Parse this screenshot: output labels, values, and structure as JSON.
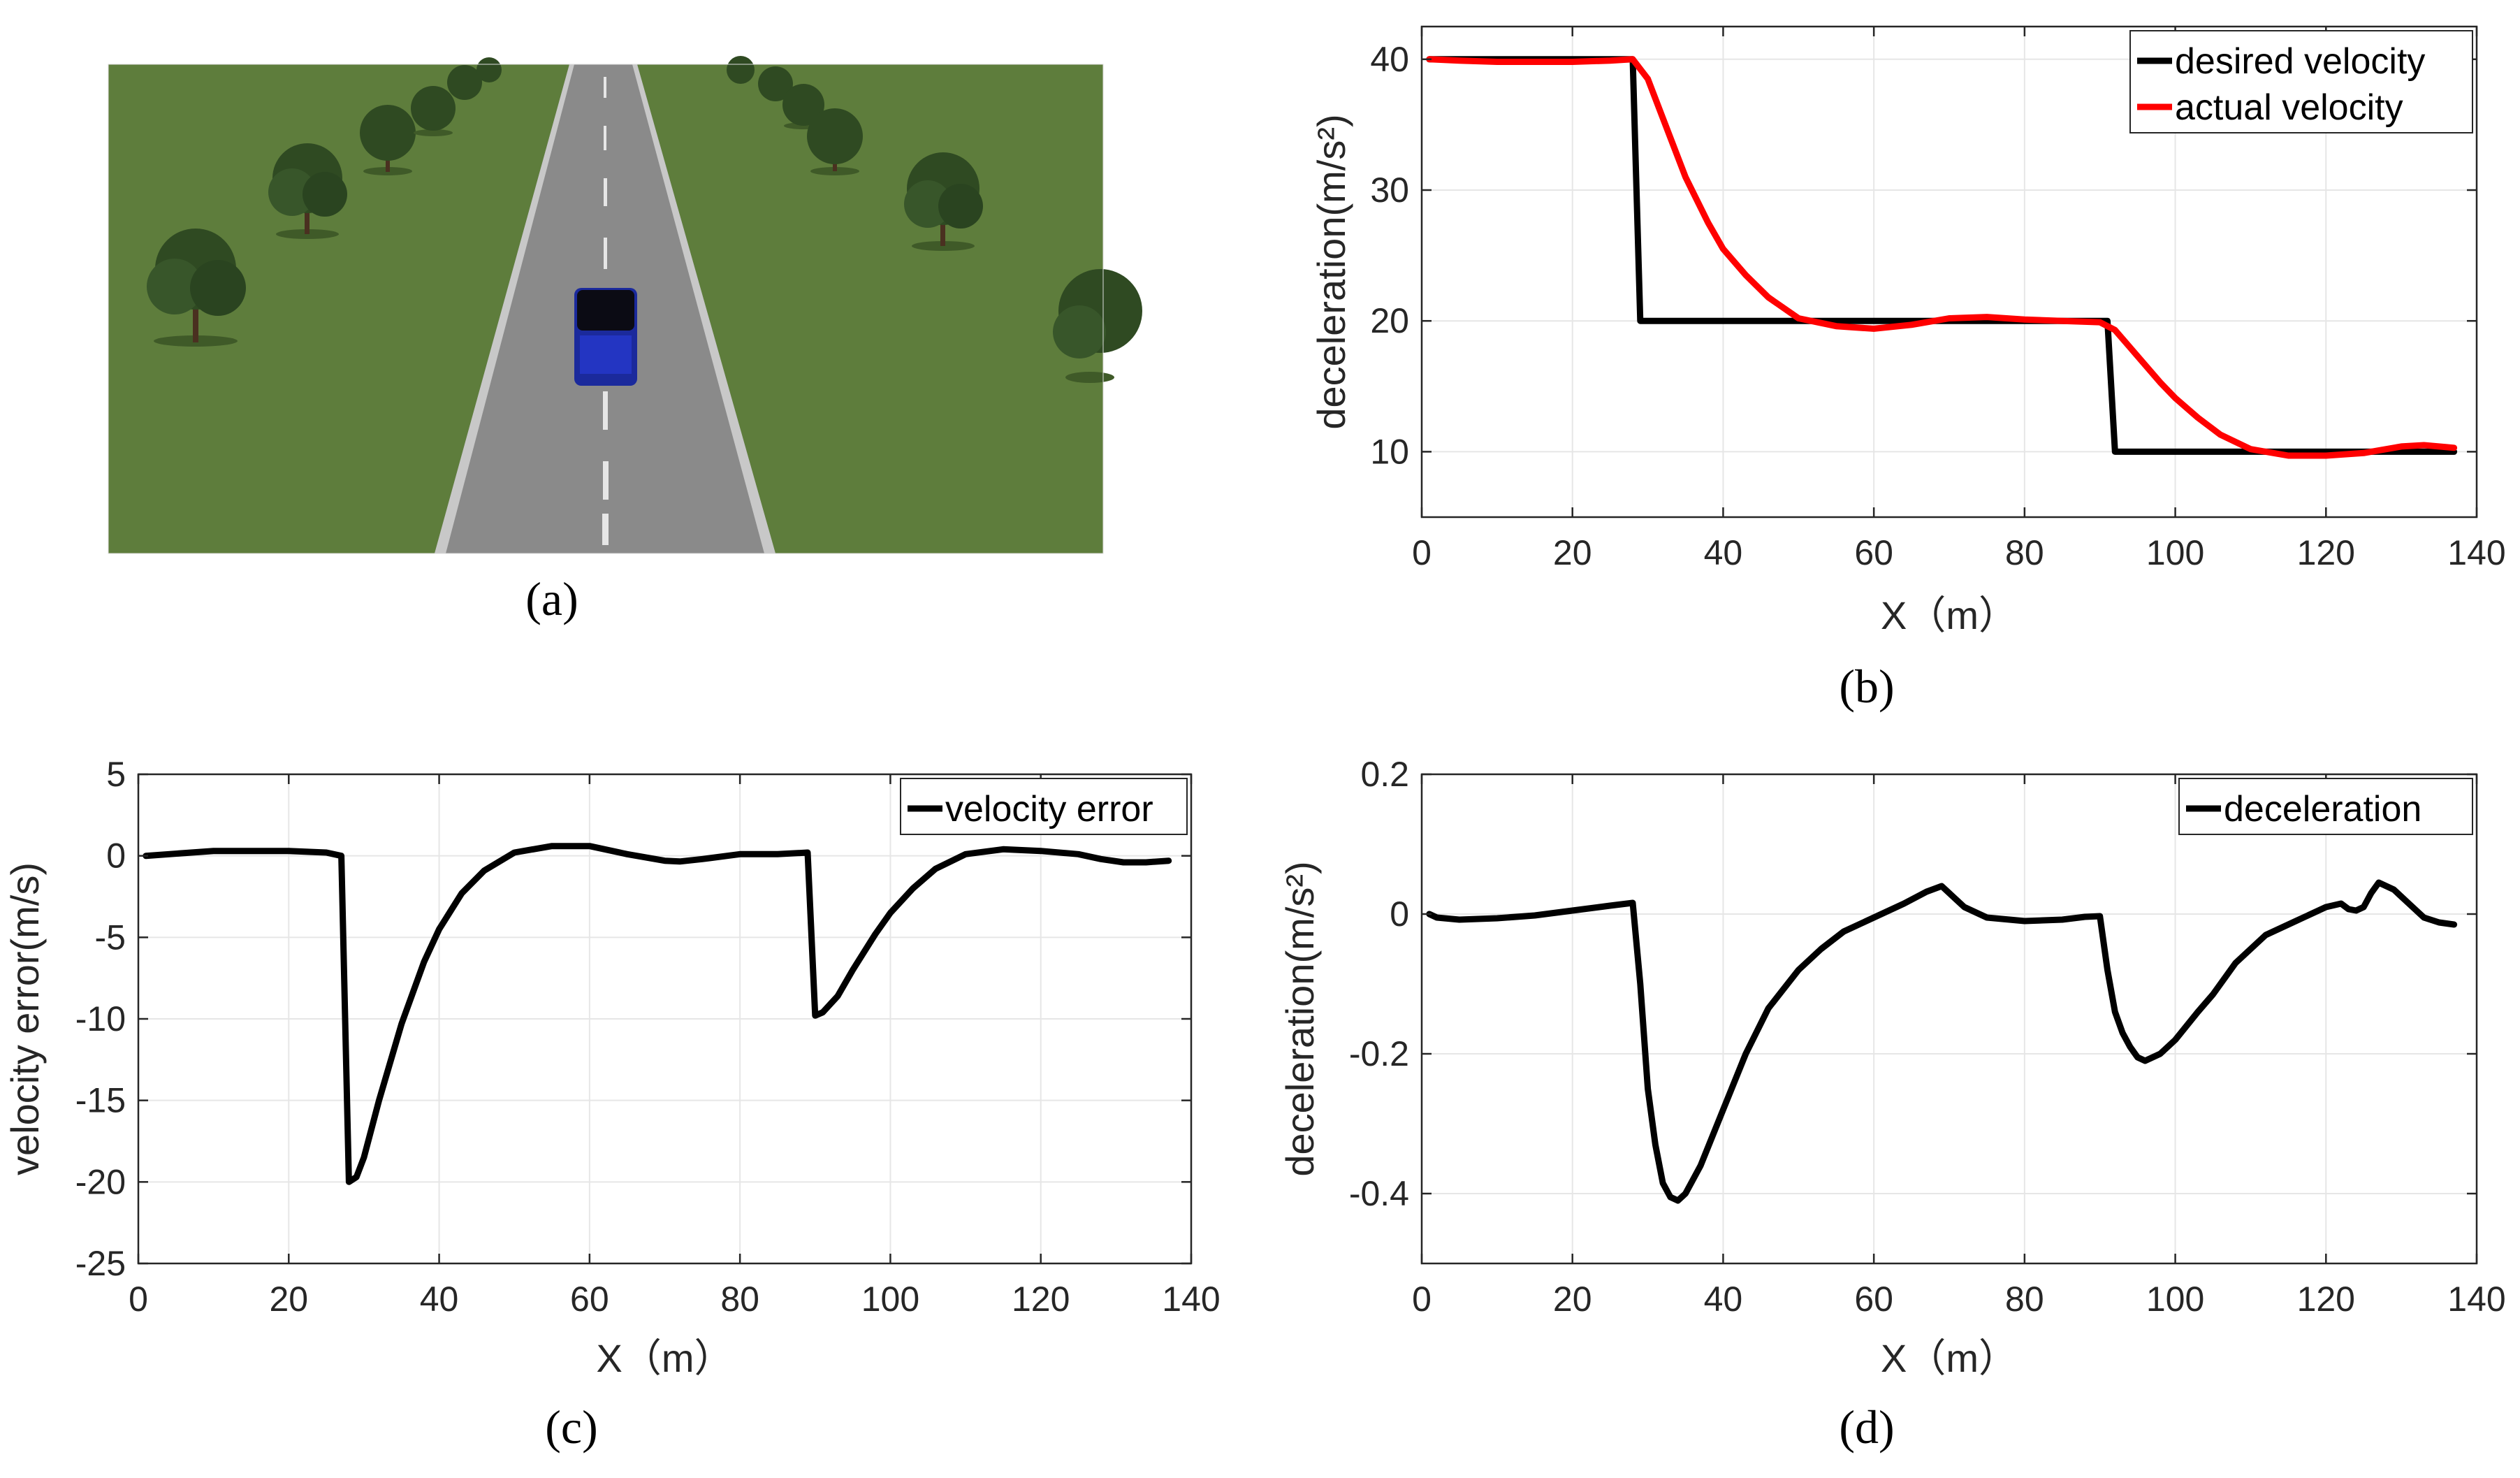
{
  "panels": {
    "a": {
      "label": "(a)"
    },
    "b": {
      "label": "(b)"
    },
    "c": {
      "label": "(c)"
    },
    "d": {
      "label": "(d)"
    }
  },
  "scene": {
    "colors": {
      "grass": "#5e7d3c",
      "road": "#8a8a8a",
      "lane_mark": "#e6e6e6",
      "vehicle": "#1b2a9c",
      "tree": "#2f4a22"
    }
  },
  "chart_data": [
    {
      "id": "b",
      "type": "line",
      "xlabel": "X（m）",
      "ylabel": "deceleration(m/s²)",
      "xlim": [
        0,
        140
      ],
      "ylim": [
        5,
        42.5
      ],
      "xticks": [
        0,
        20,
        40,
        60,
        80,
        100,
        120,
        140
      ],
      "yticks": [
        10,
        20,
        30,
        40
      ],
      "grid": true,
      "legend_position": "top-right",
      "series": [
        {
          "name": "desired velocity",
          "color": "#000000",
          "x": [
            1,
            28,
            29,
            91,
            92,
            137
          ],
          "y": [
            40,
            40,
            20,
            20,
            10,
            10
          ]
        },
        {
          "name": "actual velocity",
          "color": "#ff0000",
          "x": [
            1,
            5,
            10,
            15,
            20,
            25,
            28,
            30,
            32,
            35,
            38,
            40,
            43,
            46,
            50,
            55,
            60,
            65,
            70,
            75,
            80,
            85,
            90,
            92,
            95,
            98,
            100,
            103,
            106,
            110,
            115,
            120,
            125,
            130,
            133,
            137
          ],
          "y": [
            40,
            39.9,
            39.8,
            39.8,
            39.8,
            39.9,
            40,
            38.5,
            35.5,
            31,
            27.5,
            25.5,
            23.5,
            21.8,
            20.2,
            19.6,
            19.4,
            19.7,
            20.2,
            20.3,
            20.1,
            20,
            19.9,
            19.3,
            17.3,
            15.3,
            14.1,
            12.6,
            11.3,
            10.2,
            9.7,
            9.7,
            9.9,
            10.4,
            10.5,
            10.3
          ]
        }
      ]
    },
    {
      "id": "c",
      "type": "line",
      "xlabel": "X（m）",
      "ylabel": "velocity error(m/s)",
      "xlim": [
        0,
        140
      ],
      "ylim": [
        -25,
        5
      ],
      "xticks": [
        0,
        20,
        40,
        60,
        80,
        100,
        120,
        140
      ],
      "yticks": [
        -25,
        -20,
        -15,
        -10,
        -5,
        0,
        5
      ],
      "grid": true,
      "legend_position": "top-right",
      "series": [
        {
          "name": "velocity error",
          "color": "#000000",
          "x": [
            1,
            10,
            20,
            25,
            27,
            28,
            29,
            30,
            32,
            35,
            38,
            40,
            43,
            46,
            50,
            55,
            60,
            65,
            70,
            72,
            75,
            80,
            85,
            89,
            90,
            91,
            93,
            95,
            98,
            100,
            103,
            106,
            110,
            115,
            120,
            125,
            128,
            131,
            134,
            137
          ],
          "y": [
            0,
            0.3,
            0.3,
            0.2,
            0,
            -20,
            -19.7,
            -18.5,
            -15,
            -10.3,
            -6.5,
            -4.5,
            -2.3,
            -0.9,
            0.2,
            0.6,
            0.6,
            0.1,
            -0.3,
            -0.35,
            -0.2,
            0.1,
            0.1,
            0.2,
            -9.8,
            -9.6,
            -8.6,
            -7,
            -4.8,
            -3.5,
            -2,
            -0.8,
            0.1,
            0.4,
            0.3,
            0.1,
            -0.2,
            -0.4,
            -0.4,
            -0.3
          ]
        }
      ]
    },
    {
      "id": "d",
      "type": "line",
      "xlabel": "X（m）",
      "ylabel": "deceleration(m/s²)",
      "xlim": [
        0,
        140
      ],
      "ylim": [
        -0.5,
        0.2
      ],
      "xticks": [
        0,
        20,
        40,
        60,
        80,
        100,
        120,
        140
      ],
      "yticks": [
        -0.4,
        -0.2,
        0,
        0.2
      ],
      "grid": true,
      "legend_position": "top-right",
      "series": [
        {
          "name": "deceleration",
          "color": "#000000",
          "x": [
            1,
            2,
            5,
            10,
            15,
            20,
            25,
            28,
            29,
            30,
            31,
            32,
            33,
            34,
            35,
            37,
            40,
            43,
            46,
            50,
            53,
            56,
            60,
            64,
            67,
            69,
            72,
            75,
            80,
            85,
            88,
            90,
            91,
            92,
            93,
            94,
            95,
            96,
            98,
            100,
            103,
            105,
            108,
            112,
            116,
            120,
            122,
            123,
            124,
            125,
            126,
            127,
            129,
            131,
            133,
            135,
            137
          ],
          "y": [
            0,
            -0.005,
            -0.008,
            -0.006,
            -0.002,
            0.005,
            0.012,
            0.016,
            -0.1,
            -0.25,
            -0.33,
            -0.385,
            -0.405,
            -0.41,
            -0.4,
            -0.36,
            -0.28,
            -0.2,
            -0.135,
            -0.08,
            -0.05,
            -0.025,
            -0.005,
            0.015,
            0.032,
            0.04,
            0.01,
            -0.005,
            -0.01,
            -0.008,
            -0.004,
            -0.003,
            -0.08,
            -0.14,
            -0.17,
            -0.19,
            -0.205,
            -0.21,
            -0.2,
            -0.18,
            -0.14,
            -0.115,
            -0.07,
            -0.03,
            -0.01,
            0.01,
            0.015,
            0.007,
            0.005,
            0.01,
            0.03,
            0.045,
            0.035,
            0.015,
            -0.005,
            -0.012,
            -0.015
          ]
        }
      ]
    }
  ]
}
